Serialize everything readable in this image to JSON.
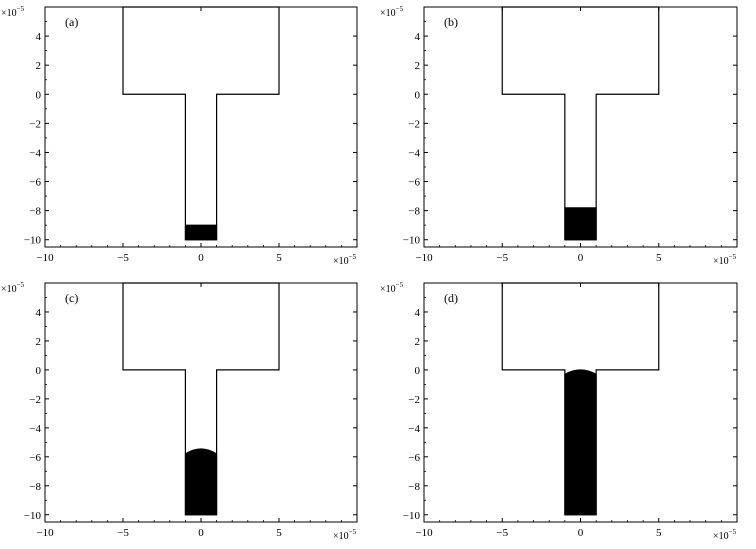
{
  "figure": {
    "x_exponent": "×10",
    "x_exponent_power": "−5",
    "y_exponent": "×10",
    "y_exponent_power": "−5"
  },
  "chart_data": [
    {
      "type": "area",
      "panel_label": "(a)",
      "xlim": [
        -10,
        10
      ],
      "ylim": [
        -10.5,
        6
      ],
      "xticks": [
        -10,
        -5,
        0,
        5,
        10
      ],
      "yticks": [
        4,
        2,
        0,
        -2,
        -4,
        -6,
        -8,
        -10
      ],
      "xtick_labels": [
        "−10",
        "−5",
        "0",
        "5",
        ""
      ],
      "ytick_labels": [
        "4",
        "2",
        "0",
        "−2",
        "−4",
        "−6",
        "−8",
        "−10"
      ],
      "grid": false,
      "channel_outline": [
        [
          -5,
          6
        ],
        [
          5,
          6
        ],
        [
          5,
          0
        ],
        [
          1,
          0
        ],
        [
          1,
          -10
        ],
        [
          -1,
          -10
        ],
        [
          -1,
          0
        ],
        [
          -5,
          0
        ]
      ],
      "fill_level": -9,
      "meniscus_height": 0
    },
    {
      "type": "area",
      "panel_label": "(b)",
      "xlim": [
        -10,
        10
      ],
      "ylim": [
        -10.5,
        6
      ],
      "xticks": [
        -10,
        -5,
        0,
        5,
        10
      ],
      "yticks": [
        4,
        2,
        0,
        -2,
        -4,
        -6,
        -8,
        -10
      ],
      "xtick_labels": [
        "−10",
        "−5",
        "0",
        "5",
        ""
      ],
      "ytick_labels": [
        "4",
        "2",
        "0",
        "−2",
        "−4",
        "−6",
        "−8",
        "−10"
      ],
      "grid": false,
      "channel_outline": [
        [
          -5,
          6
        ],
        [
          5,
          6
        ],
        [
          5,
          0
        ],
        [
          1,
          0
        ],
        [
          1,
          -10
        ],
        [
          -1,
          -10
        ],
        [
          -1,
          0
        ],
        [
          -5,
          0
        ]
      ],
      "fill_level": -7.8,
      "meniscus_height": 0
    },
    {
      "type": "area",
      "panel_label": "(c)",
      "xlim": [
        -10,
        10
      ],
      "ylim": [
        -10.5,
        6
      ],
      "xticks": [
        -10,
        -5,
        0,
        5,
        10
      ],
      "yticks": [
        4,
        2,
        0,
        -2,
        -4,
        -6,
        -8,
        -10
      ],
      "xtick_labels": [
        "−10",
        "−5",
        "0",
        "5",
        ""
      ],
      "ytick_labels": [
        "4",
        "2",
        "0",
        "−2",
        "−4",
        "−6",
        "−8",
        "−10"
      ],
      "grid": false,
      "channel_outline": [
        [
          -5,
          6
        ],
        [
          5,
          6
        ],
        [
          5,
          0
        ],
        [
          1,
          0
        ],
        [
          1,
          -10
        ],
        [
          -1,
          -10
        ],
        [
          -1,
          0
        ],
        [
          -5,
          0
        ]
      ],
      "fill_level": -5.8,
      "meniscus_height": 0.35
    },
    {
      "type": "area",
      "panel_label": "(d)",
      "xlim": [
        -10,
        10
      ],
      "ylim": [
        -10.5,
        6
      ],
      "xticks": [
        -10,
        -5,
        0,
        5,
        10
      ],
      "yticks": [
        4,
        2,
        0,
        -2,
        -4,
        -6,
        -8,
        -10
      ],
      "xtick_labels": [
        "−10",
        "−5",
        "0",
        "5",
        ""
      ],
      "ytick_labels": [
        "4",
        "2",
        "0",
        "−2",
        "−4",
        "−6",
        "−8",
        "−10"
      ],
      "grid": false,
      "channel_outline": [
        [
          -5,
          6
        ],
        [
          5,
          6
        ],
        [
          5,
          0
        ],
        [
          1,
          0
        ],
        [
          1,
          -10
        ],
        [
          -1,
          -10
        ],
        [
          -1,
          0
        ],
        [
          -5,
          0
        ]
      ],
      "fill_level": -0.3,
      "meniscus_height": 0.3
    }
  ]
}
